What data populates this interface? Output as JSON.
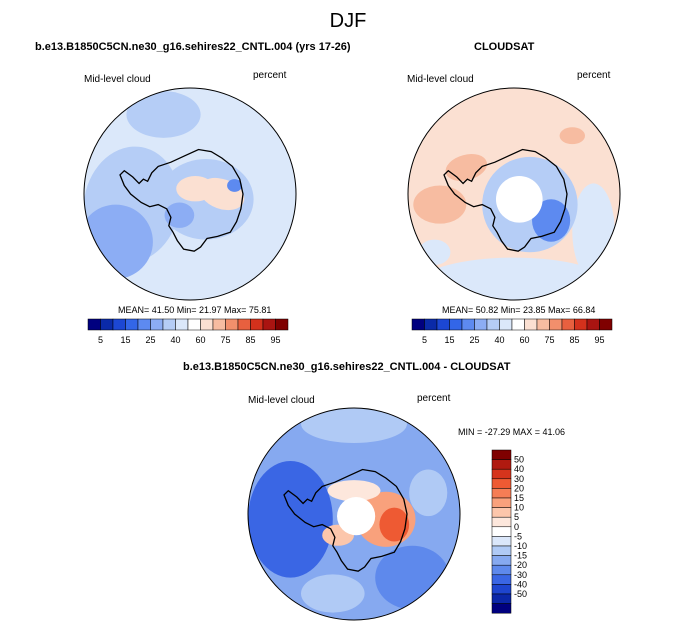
{
  "page": {
    "title": "DJF"
  },
  "panels": {
    "model": {
      "title": "b.e13.B1850C5CN.ne30_g16.sehires22_CNTL.004 (yrs 17-26)",
      "variable": "Mid-level cloud",
      "units": "percent",
      "stats": "MEAN=  41.50  Min=  21.97  Max=  75.81"
    },
    "obs": {
      "title": "CLOUDSAT",
      "variable": "Mid-level cloud",
      "units": "percent",
      "stats": "MEAN=  50.82  Min=  23.85  Max=  66.84"
    },
    "diff": {
      "title": "b.e13.B1850C5CN.ne30_g16.sehires22_CNTL.004 - CLOUDSAT",
      "variable": "Mid-level cloud",
      "units": "percent",
      "stats": "MIN = -27.29  MAX =  41.06"
    }
  },
  "chart_data": [
    {
      "type": "heatmap",
      "projection": "south-polar-stereographic",
      "title": "b.e13.B1850C5CN.ne30_g16.sehires22_CNTL.004 (yrs 17-26)",
      "field": "Mid-level cloud",
      "units": "percent",
      "mean": 41.5,
      "min": 21.97,
      "max": 75.81,
      "colorbar": {
        "orientation": "horizontal",
        "levels": [
          5,
          10,
          15,
          20,
          25,
          30,
          40,
          50,
          60,
          65,
          75,
          80,
          85,
          90,
          95
        ],
        "tick_labels": [
          "5",
          "15",
          "25",
          "40",
          "60",
          "75",
          "85",
          "95"
        ],
        "colors": [
          "#00007f",
          "#0a2aa8",
          "#1c47d3",
          "#3366e8",
          "#5d8af0",
          "#8cadf4",
          "#b5cdf6",
          "#dbe8fa",
          "#ffffff",
          "#fbe0d2",
          "#f7bca1",
          "#f28f6c",
          "#e8603f",
          "#d4311c",
          "#aa1411",
          "#7f0000"
        ]
      }
    },
    {
      "type": "heatmap",
      "projection": "south-polar-stereographic",
      "title": "CLOUDSAT",
      "field": "Mid-level cloud",
      "units": "percent",
      "mean": 50.82,
      "min": 23.85,
      "max": 66.84,
      "colorbar": {
        "orientation": "horizontal",
        "levels": [
          5,
          10,
          15,
          20,
          25,
          30,
          40,
          50,
          60,
          65,
          75,
          80,
          85,
          90,
          95
        ],
        "tick_labels": [
          "5",
          "15",
          "25",
          "40",
          "60",
          "75",
          "85",
          "95"
        ],
        "colors": [
          "#00007f",
          "#0a2aa8",
          "#1c47d3",
          "#3366e8",
          "#5d8af0",
          "#8cadf4",
          "#b5cdf6",
          "#dbe8fa",
          "#ffffff",
          "#fbe0d2",
          "#f7bca1",
          "#f28f6c",
          "#e8603f",
          "#d4311c",
          "#aa1411",
          "#7f0000"
        ]
      }
    },
    {
      "type": "heatmap",
      "projection": "south-polar-stereographic",
      "title": "b.e13.B1850C5CN.ne30_g16.sehires22_CNTL.004 - CLOUDSAT",
      "field": "Mid-level cloud",
      "units": "percent",
      "min": -27.29,
      "max": 41.06,
      "colorbar": {
        "orientation": "vertical",
        "labels_top_to_bottom": [
          "50",
          "40",
          "30",
          "20",
          "15",
          "10",
          "5",
          "0",
          "-5",
          "-10",
          "-15",
          "-20",
          "-30",
          "-40",
          "-50"
        ],
        "colors_top_to_bottom": [
          "#7f0000",
          "#b01a10",
          "#d6341c",
          "#ee5a33",
          "#f57d55",
          "#f9a17c",
          "#fcc6ab",
          "#fde7dc",
          "#ffffff",
          "#dbe7fa",
          "#b0caf5",
          "#86a9f0",
          "#5e89ec",
          "#3a66e4",
          "#1e45cf",
          "#0b27a8",
          "#00007f"
        ]
      }
    }
  ]
}
